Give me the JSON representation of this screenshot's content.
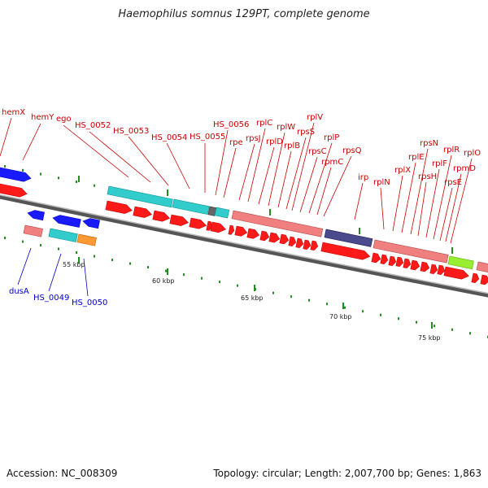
{
  "title": "Haemophilus somnus 129PT, complete genome",
  "footer": {
    "accession": "Accession: NC_008309",
    "summary": "Topology: circular; Length: 2,007,700 bp; Genes: 1,863"
  },
  "colors": {
    "forward_cds": "#ff1a1a",
    "trna_cyan": "#33cccc",
    "rrna_pink": "#f08080",
    "blue_gene": "#1a1aff",
    "navy_gene": "#4a4a8c",
    "orange_gene": "#ff9933",
    "lime_gene": "#99ee33",
    "top_label": "#cc0000",
    "bottom_label": "#0000cc",
    "tick_green": "#228b22"
  },
  "scale_labels": [
    "55 kbp",
    "60 kbp",
    "65 kbp",
    "70 kbp",
    "75 kbp"
  ],
  "top_labels": [
    "hemX",
    "hemY",
    "ego",
    "HS_0052",
    "HS_0053",
    "HS_0054",
    "HS_0055",
    "HS_0056",
    "rpe",
    "rpsJ",
    "rplC",
    "rplD",
    "rplW",
    "rplB",
    "rpsS",
    "rplV",
    "rpsC",
    "rplP",
    "rpmC",
    "rpsQ",
    "irp",
    "rplN",
    "rplX",
    "rplE",
    "rpsN",
    "rpsH",
    "rplF",
    "rplR",
    "rpsE",
    "rpmD",
    "rplO"
  ],
  "bottom_labels": [
    "dusA",
    "HS_0049",
    "HS_0050"
  ]
}
